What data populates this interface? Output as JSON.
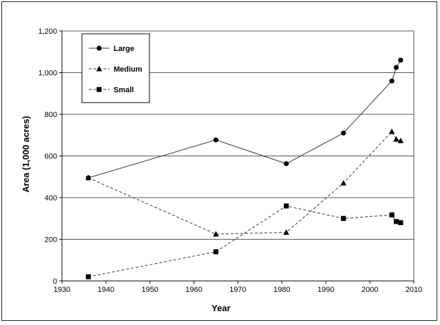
{
  "chart_data": {
    "type": "line",
    "title": "",
    "xlabel": "Year",
    "ylabel": "Area (1,000 acres)",
    "xlim": [
      1930,
      2010
    ],
    "ylim": [
      0,
      1200
    ],
    "xticks": [
      1930,
      1940,
      1950,
      1960,
      1970,
      1980,
      1990,
      2000,
      2010
    ],
    "yticks": [
      0,
      200,
      400,
      600,
      800,
      1000,
      1200
    ],
    "ytick_labels": [
      "0",
      "200",
      "400",
      "600",
      "800",
      "1,000",
      "1,200"
    ],
    "grid": "horizontal",
    "legend_position": "top-left",
    "series": [
      {
        "name": "Large",
        "marker": "circle",
        "line": "solid",
        "x": [
          1936,
          1965,
          1981,
          1994,
          2005,
          2006,
          2007
        ],
        "y": [
          495,
          677,
          563,
          710,
          960,
          1025,
          1060
        ]
      },
      {
        "name": "Medium",
        "marker": "triangle",
        "line": "dashed",
        "x": [
          1936,
          1965,
          1981,
          1994,
          2005,
          2006,
          2007
        ],
        "y": [
          495,
          225,
          233,
          470,
          717,
          680,
          673
        ]
      },
      {
        "name": "Small",
        "marker": "square",
        "line": "dashed",
        "x": [
          1936,
          1965,
          1981,
          1994,
          2005,
          2006,
          2007
        ],
        "y": [
          20,
          140,
          360,
          300,
          317,
          285,
          280
        ]
      }
    ]
  }
}
